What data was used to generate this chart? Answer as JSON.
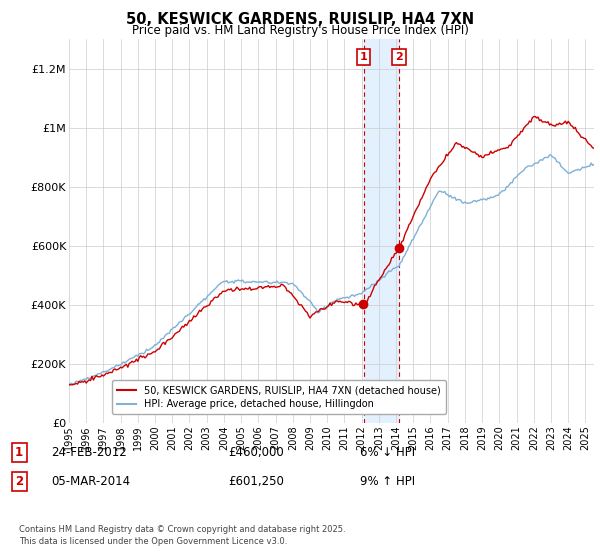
{
  "title": "50, KESWICK GARDENS, RUISLIP, HA4 7XN",
  "subtitle": "Price paid vs. HM Land Registry's House Price Index (HPI)",
  "ytick_values": [
    0,
    200000,
    400000,
    600000,
    800000,
    1000000,
    1200000
  ],
  "ylim": [
    0,
    1300000
  ],
  "xlim_start": 1995.0,
  "xlim_end": 2025.5,
  "transaction1": {
    "date": "24-FEB-2012",
    "x": 2012.12,
    "price": 460000,
    "label": "1",
    "pct": "6%",
    "dir": "↓"
  },
  "transaction2": {
    "date": "05-MAR-2014",
    "x": 2014.18,
    "price": 601250,
    "label": "2",
    "pct": "9%",
    "dir": "↑"
  },
  "legend_line1": "50, KESWICK GARDENS, RUISLIP, HA4 7XN (detached house)",
  "legend_line2": "HPI: Average price, detached house, Hillingdon",
  "footer": "Contains HM Land Registry data © Crown copyright and database right 2025.\nThis data is licensed under the Open Government Licence v3.0.",
  "line_color_red": "#cc0000",
  "line_color_blue": "#7fb0d8",
  "shade_color": "#ddeeff",
  "grid_color": "#cccccc",
  "background_color": "#ffffff",
  "x_tick_years": [
    1995,
    1996,
    1997,
    1998,
    1999,
    2000,
    2001,
    2002,
    2003,
    2004,
    2005,
    2006,
    2007,
    2008,
    2009,
    2010,
    2011,
    2012,
    2013,
    2014,
    2015,
    2016,
    2017,
    2018,
    2019,
    2020,
    2021,
    2022,
    2023,
    2024,
    2025
  ]
}
